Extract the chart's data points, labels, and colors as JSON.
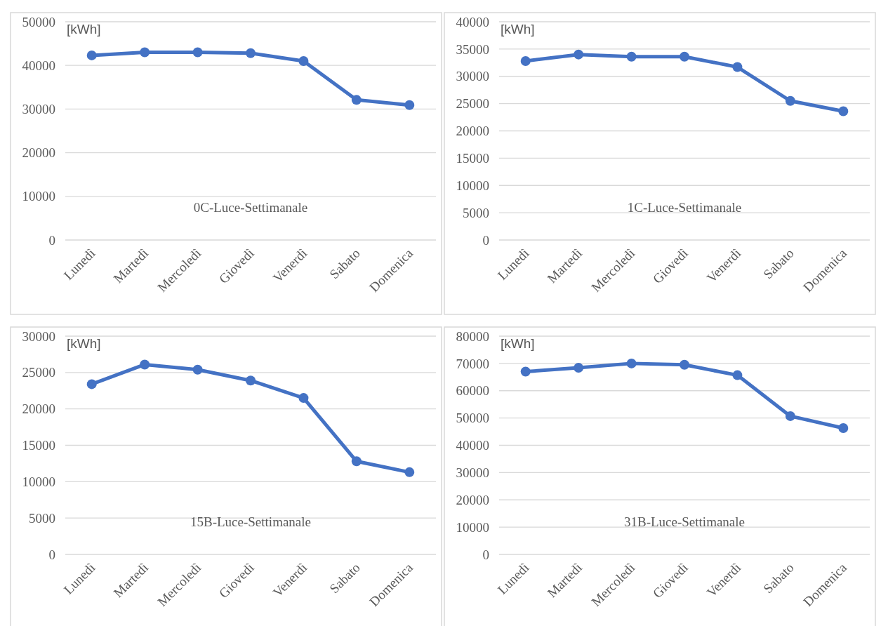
{
  "chart_data": [
    {
      "type": "line",
      "title": "0C-Luce-Settimanale",
      "ylabel": "[kWh]",
      "categories": [
        "Lunedì",
        "Martedì",
        "Mercoledì",
        "Giovedì",
        "Venerdì",
        "Sabato",
        "Domenica"
      ],
      "series": [
        {
          "color": "#4472c4",
          "values": [
            42300,
            43000,
            43000,
            42800,
            41000,
            32100,
            30900
          ]
        }
      ],
      "ylim": [
        0,
        50000
      ],
      "yticks": [
        0,
        10000,
        20000,
        30000,
        40000,
        50000
      ],
      "grid": "y",
      "marker": "circle",
      "line_style": "solid"
    },
    {
      "type": "line",
      "title": "1C-Luce-Settimanale",
      "ylabel": "[kWh]",
      "categories": [
        "Lunedì",
        "Martedì",
        "Mercoledì",
        "Giovedì",
        "Venerdì",
        "Sabato",
        "Domenica"
      ],
      "series": [
        {
          "color": "#4472c4",
          "values": [
            32800,
            34000,
            33600,
            33600,
            31700,
            25500,
            23600
          ]
        }
      ],
      "ylim": [
        0,
        40000
      ],
      "yticks": [
        0,
        5000,
        10000,
        15000,
        20000,
        25000,
        30000,
        35000,
        40000
      ],
      "grid": "y",
      "marker": "circle",
      "line_style": "solid"
    },
    {
      "type": "line",
      "title": "15B-Luce-Settimanale",
      "ylabel": "[kWh]",
      "categories": [
        "Lunedì",
        "Martedì",
        "Mercoledì",
        "Giovedì",
        "Venerdì",
        "Sabato",
        "Domenica"
      ],
      "series": [
        {
          "color": "#4472c4",
          "values": [
            23400,
            26100,
            25400,
            23900,
            21500,
            12800,
            11300
          ]
        }
      ],
      "ylim": [
        0,
        30000
      ],
      "yticks": [
        0,
        5000,
        10000,
        15000,
        20000,
        25000,
        30000
      ],
      "grid": "y",
      "marker": "circle",
      "line_style": "solid"
    },
    {
      "type": "line",
      "title": "31B-Luce-Settimanale",
      "ylabel": "[kWh]",
      "categories": [
        "Lunedì",
        "Martedì",
        "Mercoledì",
        "Giovedì",
        "Venerdì",
        "Sabato",
        "Domenica"
      ],
      "series": [
        {
          "color": "#4472c4",
          "values": [
            67000,
            68400,
            70000,
            69500,
            65700,
            50700,
            46300
          ]
        }
      ],
      "ylim": [
        0,
        80000
      ],
      "yticks": [
        0,
        10000,
        20000,
        30000,
        40000,
        50000,
        60000,
        70000,
        80000
      ],
      "grid": "y",
      "marker": "circle",
      "line_style": "solid"
    }
  ]
}
